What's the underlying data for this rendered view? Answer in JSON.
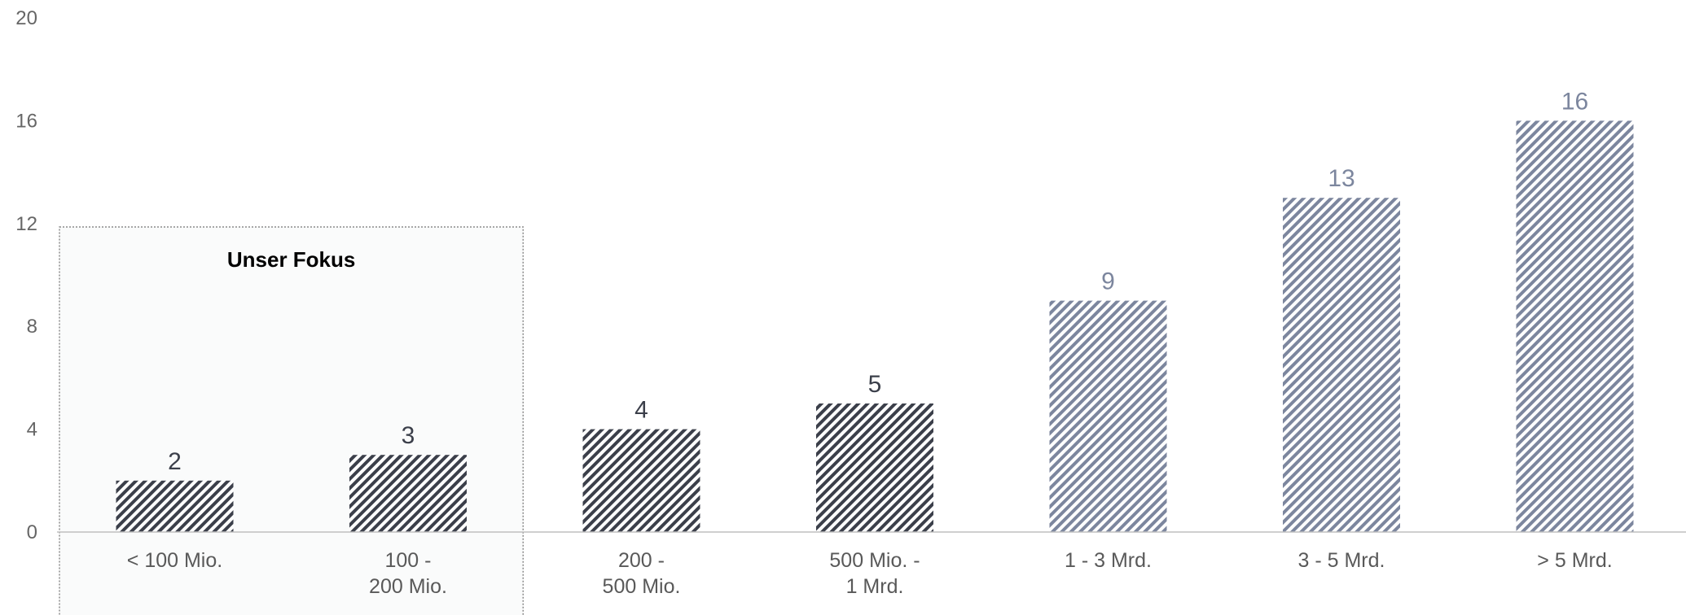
{
  "chart_data": {
    "type": "bar",
    "categories": [
      [
        "< 100 Mio."
      ],
      [
        "100 -",
        "200 Mio."
      ],
      [
        "200 -",
        "500 Mio."
      ],
      [
        "500 Mio. -",
        "1 Mrd."
      ],
      [
        "1 - 3 Mrd."
      ],
      [
        "3 - 5 Mrd."
      ],
      [
        "> 5 Mrd."
      ]
    ],
    "values": [
      2,
      3,
      4,
      5,
      9,
      13,
      16
    ],
    "ylim": [
      0,
      20
    ],
    "yticks": [
      0,
      4,
      8,
      12,
      16,
      20
    ],
    "grid": false,
    "highlight": {
      "label": "Unser Fokus",
      "categories": [
        0,
        1
      ]
    },
    "colors": {
      "dark": "#3b3f4a",
      "light": "#7c869e",
      "pattern_line": "#ffffff",
      "axis": "#bfbfbf",
      "focus_border": "#8a8a8a",
      "focus_fill": "#fafbfb"
    },
    "bar_color_groups": [
      "dark",
      "dark",
      "dark",
      "dark",
      "light",
      "light",
      "light"
    ]
  }
}
